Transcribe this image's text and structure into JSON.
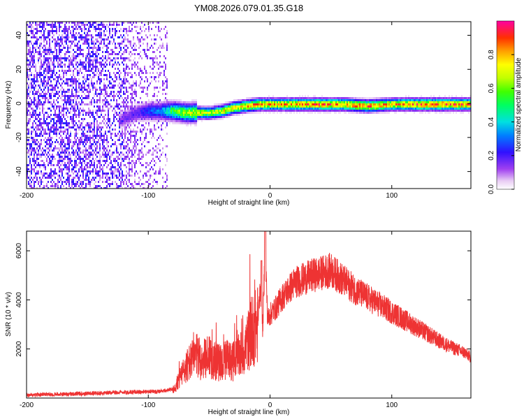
{
  "title": "YM08.2026.079.01.35.G18",
  "chart_data": [
    {
      "type": "heatmap",
      "xlabel": "Height of straight line (km)",
      "ylabel": "Frequency (Hz)",
      "xlim": [
        -200,
        165
      ],
      "ylim": [
        -50,
        48
      ],
      "xticks": [
        "-200",
        "-100",
        "0",
        "100"
      ],
      "yticks": [
        "40",
        "20",
        "0",
        "-20",
        "-40"
      ],
      "colorbar": {
        "label": "Normalized spectral amplitude",
        "range": [
          0,
          1
        ],
        "ticks": [
          "0.0",
          "0.2",
          "0.4",
          "0.6",
          "0.8"
        ]
      },
      "noise_region_x": [
        -200,
        -85
      ],
      "ridge": {
        "description_values": "dominant energy concentrated near 0 Hz",
        "x": [
          -125,
          -110,
          -100,
          -90,
          -80,
          -70,
          -60,
          -50,
          -40,
          -30,
          -20,
          -10,
          0,
          20,
          40,
          60,
          80,
          100,
          120,
          140,
          165
        ],
        "y": [
          -10,
          -5,
          -4,
          -4,
          -4,
          -5,
          -5,
          -5,
          -4,
          -2,
          -1,
          0,
          0,
          0,
          0,
          0,
          -1,
          0,
          0,
          0,
          0
        ],
        "amplitude": [
          0.15,
          0.2,
          0.3,
          0.35,
          0.6,
          0.7,
          0.75,
          0.7,
          0.75,
          0.8,
          0.85,
          0.9,
          0.85,
          0.9,
          0.95,
          0.9,
          0.9,
          0.85,
          0.9,
          0.95,
          0.9
        ]
      }
    },
    {
      "type": "line",
      "xlabel": "Height of straight line (km)",
      "ylabel": "SNR (10 * v/v)",
      "xlim": [
        -200,
        165
      ],
      "ylim": [
        0,
        6800
      ],
      "xticks": [
        "-200",
        "-100",
        "0",
        "100"
      ],
      "yticks": [
        "2000",
        "4000",
        "6000"
      ],
      "series": [
        {
          "color": "#ee3333",
          "x": [
            -200,
            -180,
            -160,
            -140,
            -120,
            -100,
            -90,
            -80,
            -75,
            -70,
            -65,
            -60,
            -55,
            -50,
            -45,
            -40,
            -35,
            -30,
            -25,
            -20,
            -15,
            -10,
            -8,
            -6,
            -4,
            -2,
            0,
            5,
            10,
            15,
            20,
            25,
            30,
            35,
            40,
            45,
            50,
            55,
            60,
            65,
            70,
            80,
            90,
            100,
            110,
            120,
            130,
            140,
            150,
            160,
            165
          ],
          "y": [
            120,
            150,
            170,
            200,
            240,
            260,
            280,
            350,
            700,
            1200,
            1500,
            1700,
            1500,
            1800,
            1500,
            1400,
            1600,
            1500,
            1700,
            2100,
            2700,
            3000,
            4600,
            2800,
            6200,
            3200,
            3400,
            3700,
            4100,
            4400,
            4700,
            4800,
            4900,
            5000,
            5050,
            5150,
            5200,
            5000,
            4800,
            4600,
            4400,
            4100,
            3800,
            3500,
            3200,
            2900,
            2600,
            2300,
            2050,
            1850,
            1650
          ]
        }
      ]
    }
  ]
}
